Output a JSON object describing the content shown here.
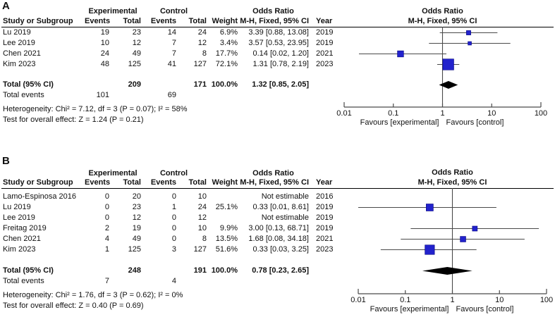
{
  "colors": {
    "square_blue": "#2222cc",
    "square_border": "#000080",
    "diamond_black": "#000000",
    "line_gray": "#4a4a4a",
    "text": "#111111"
  },
  "chart_data": [
    {
      "type": "scatter",
      "variant": "forest_plot_meta_analysis",
      "panel_label": "A",
      "group_headers": {
        "experimental": "Experimental",
        "control": "Control",
        "odds_ratio": "Odds Ratio"
      },
      "column_headers": {
        "study": "Study or Subgroup",
        "events": "Events",
        "total": "Total",
        "weight": "Weight",
        "ci": "M-H, Fixed, 95% CI",
        "year": "Year"
      },
      "plot_header": {
        "line1": "Odds Ratio",
        "line2": "M-H, Fixed, 95% CI"
      },
      "studies": [
        {
          "study": "Lu 2019",
          "exp_events": "19",
          "exp_total": "23",
          "ctl_events": "14",
          "ctl_total": "24",
          "weight": "6.9%",
          "weight_pct": 6.9,
          "or": 3.39,
          "ci_low": 0.88,
          "ci_high": 13.08,
          "or_text": "3.39 [0.88, 13.08]",
          "year": "2019"
        },
        {
          "study": "Lee 2019",
          "exp_events": "10",
          "exp_total": "12",
          "ctl_events": "7",
          "ctl_total": "12",
          "weight": "3.4%",
          "weight_pct": 3.4,
          "or": 3.57,
          "ci_low": 0.53,
          "ci_high": 23.95,
          "or_text": "3.57 [0.53, 23.95]",
          "year": "2019"
        },
        {
          "study": "Chen 2021",
          "exp_events": "24",
          "exp_total": "49",
          "ctl_events": "7",
          "ctl_total": "8",
          "weight": "17.7%",
          "weight_pct": 17.7,
          "or": 0.14,
          "ci_low": 0.02,
          "ci_high": 1.2,
          "or_text": "0.14 [0.02, 1.20]",
          "year": "2021"
        },
        {
          "study": "Kim 2023",
          "exp_events": "48",
          "exp_total": "125",
          "ctl_events": "41",
          "ctl_total": "127",
          "weight": "72.1%",
          "weight_pct": 72.1,
          "or": 1.31,
          "ci_low": 0.78,
          "ci_high": 2.19,
          "or_text": "1.31 [0.78, 2.19]",
          "year": "2023"
        }
      ],
      "total": {
        "label": "Total (95% CI)",
        "exp_total": "209",
        "ctl_total": "171",
        "weight": "100.0%",
        "or": 1.32,
        "ci_low": 0.85,
        "ci_high": 2.05,
        "or_text": "1.32 [0.85, 2.05]"
      },
      "total_events": {
        "label": "Total events",
        "exp": "101",
        "ctl": "69"
      },
      "heterogeneity": "Heterogeneity: Chi² = 7.12, df = 3 (P = 0.07); I² = 58%",
      "overall_effect": "Test for overall effect: Z = 1.24 (P = 0.21)",
      "x_axis": {
        "scale": "log",
        "ticks": [
          0.01,
          0.1,
          1,
          10,
          100
        ],
        "tick_labels": [
          "0.01",
          "0.1",
          "1",
          "10",
          "100"
        ],
        "range": [
          0.01,
          100
        ],
        "favours_left": "Favours [experimental]",
        "favours_right": "Favours [control]"
      }
    },
    {
      "type": "scatter",
      "variant": "forest_plot_meta_analysis",
      "panel_label": "B",
      "group_headers": {
        "experimental": "Experimental",
        "control": "Control",
        "odds_ratio": "Odds Ratio"
      },
      "column_headers": {
        "study": "Study or Subgroup",
        "events": "Events",
        "total": "Total",
        "weight": "Weight",
        "ci": "M-H, Fixed, 95% CI",
        "year": "Year"
      },
      "plot_header": {
        "line1": "Odds Ratio",
        "line2": "M-H, Fixed, 95% CI"
      },
      "studies": [
        {
          "study": "Lamo-Espinosa 2016",
          "exp_events": "0",
          "exp_total": "20",
          "ctl_events": "0",
          "ctl_total": "10",
          "weight": "",
          "weight_pct": null,
          "or": null,
          "ci_low": null,
          "ci_high": null,
          "or_text": "Not estimable",
          "year": "2016"
        },
        {
          "study": "Lu 2019",
          "exp_events": "0",
          "exp_total": "23",
          "ctl_events": "1",
          "ctl_total": "24",
          "weight": "25.1%",
          "weight_pct": 25.1,
          "or": 0.33,
          "ci_low": 0.01,
          "ci_high": 8.61,
          "or_text": "0.33 [0.01, 8.61]",
          "year": "2019"
        },
        {
          "study": "Lee 2019",
          "exp_events": "0",
          "exp_total": "12",
          "ctl_events": "0",
          "ctl_total": "12",
          "weight": "",
          "weight_pct": null,
          "or": null,
          "ci_low": null,
          "ci_high": null,
          "or_text": "Not estimable",
          "year": "2019"
        },
        {
          "study": "Freitag 2019",
          "exp_events": "2",
          "exp_total": "19",
          "ctl_events": "0",
          "ctl_total": "10",
          "weight": "9.9%",
          "weight_pct": 9.9,
          "or": 3.0,
          "ci_low": 0.13,
          "ci_high": 68.71,
          "or_text": "3.00 [0.13, 68.71]",
          "year": "2019"
        },
        {
          "study": "Chen 2021",
          "exp_events": "4",
          "exp_total": "49",
          "ctl_events": "0",
          "ctl_total": "8",
          "weight": "13.5%",
          "weight_pct": 13.5,
          "or": 1.68,
          "ci_low": 0.08,
          "ci_high": 34.18,
          "or_text": "1.68 [0.08, 34.18]",
          "year": "2021"
        },
        {
          "study": "Kim 2023",
          "exp_events": "1",
          "exp_total": "125",
          "ctl_events": "3",
          "ctl_total": "127",
          "weight": "51.6%",
          "weight_pct": 51.6,
          "or": 0.33,
          "ci_low": 0.03,
          "ci_high": 3.25,
          "or_text": "0.33 [0.03, 3.25]",
          "year": "2023"
        }
      ],
      "total": {
        "label": "Total (95% CI)",
        "exp_total": "248",
        "ctl_total": "191",
        "weight": "100.0%",
        "or": 0.78,
        "ci_low": 0.23,
        "ci_high": 2.65,
        "or_text": "0.78 [0.23, 2.65]"
      },
      "total_events": {
        "label": "Total events",
        "exp": "7",
        "ctl": "4"
      },
      "heterogeneity": "Heterogeneity: Chi² = 1.76, df = 3 (P = 0.62); I² = 0%",
      "overall_effect": "Test for overall effect: Z = 0.40 (P = 0.69)",
      "x_axis": {
        "scale": "log",
        "ticks": [
          0.01,
          0.1,
          1,
          10,
          100
        ],
        "tick_labels": [
          "0.01",
          "0.1",
          "1",
          "10",
          "100"
        ],
        "range": [
          0.01,
          100
        ],
        "favours_left": "Favours [experimental]",
        "favours_right": "Favours [control]"
      }
    }
  ]
}
